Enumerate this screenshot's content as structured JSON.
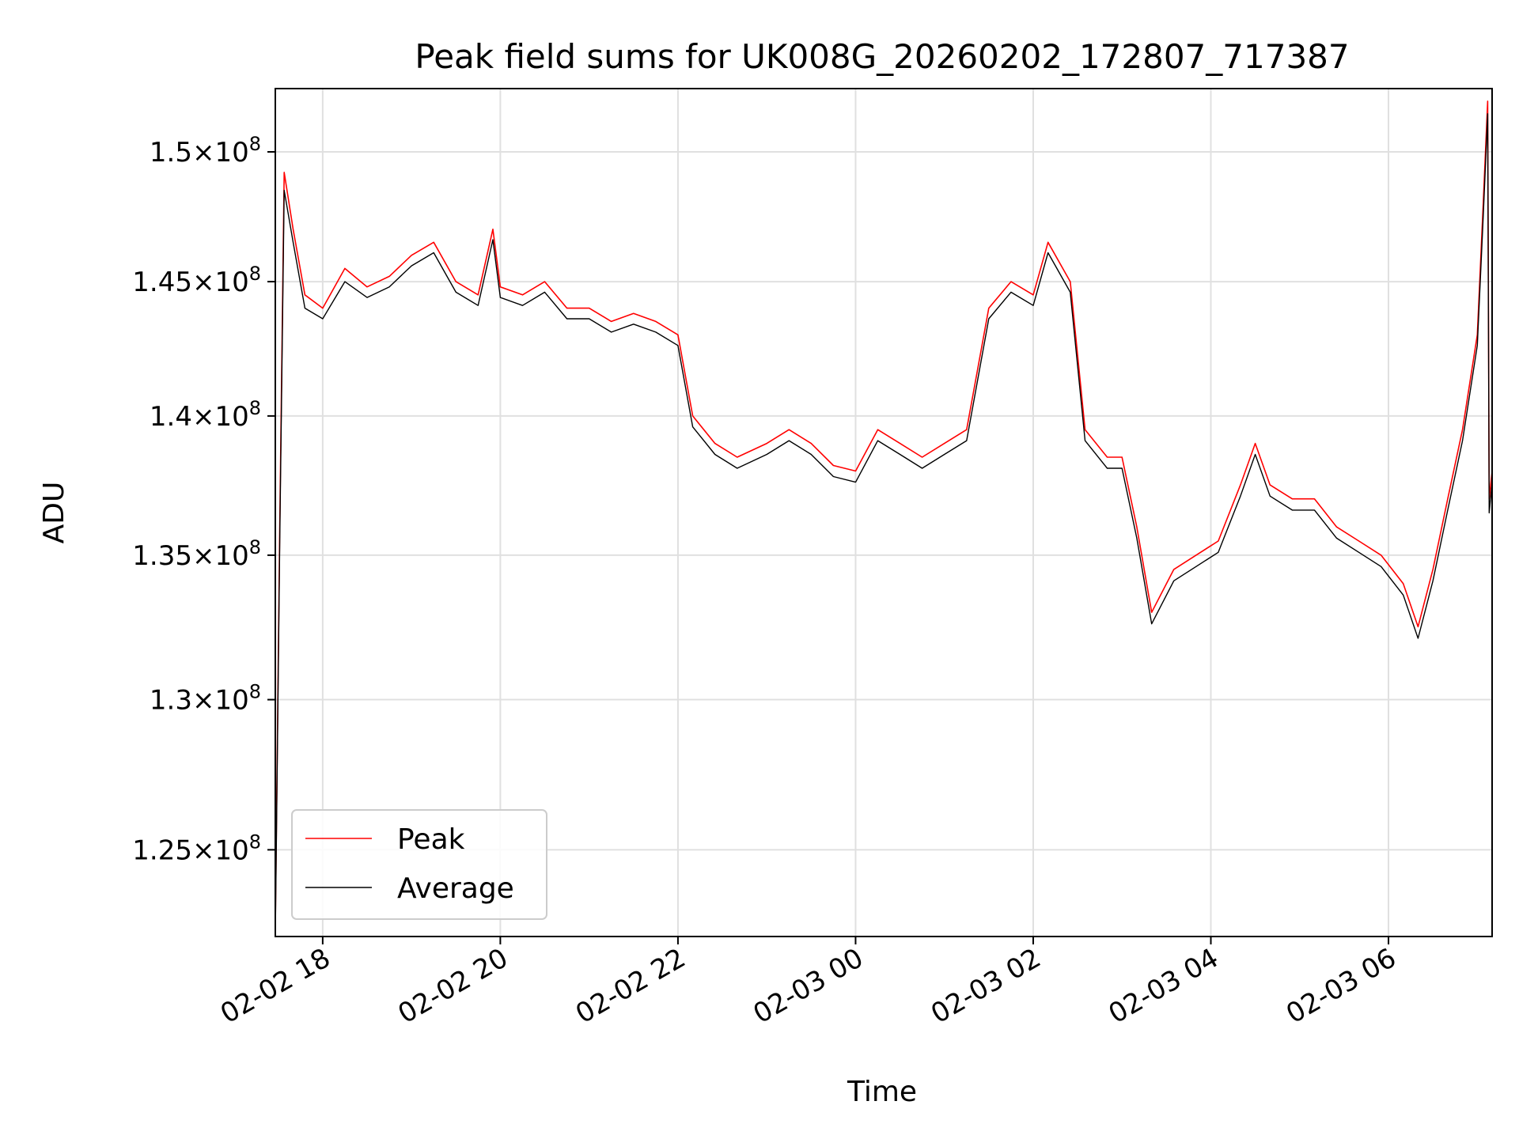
{
  "chart_data": {
    "type": "line",
    "title": "Peak field sums for UK008G_20260202_172807_717387",
    "xlabel": "Time",
    "ylabel": "ADU",
    "x_range": [
      "2026-02-02 17:28",
      "2026-02-03 07:10"
    ],
    "ylim": [
      122200000.0,
      152500000.0
    ],
    "y_scale": "log",
    "grid": true,
    "legend": {
      "position": "lower-left",
      "entries": [
        "Peak",
        "Average"
      ]
    },
    "x_ticks": [
      "02-02 18",
      "02-02 20",
      "02-02 22",
      "02-03 00",
      "02-03 02",
      "02-03 04",
      "02-03 06"
    ],
    "x_tick_values": [
      "2026-02-02 18:00",
      "2026-02-02 20:00",
      "2026-02-02 22:00",
      "2026-02-03 00:00",
      "2026-02-03 02:00",
      "2026-02-03 04:00",
      "2026-02-03 06:00"
    ],
    "y_ticks": [
      {
        "value": 125000000.0,
        "mantissa": "1.25",
        "exp": "8"
      },
      {
        "value": 130000000.0,
        "mantissa": "1.3",
        "exp": "8"
      },
      {
        "value": 135000000.0,
        "mantissa": "1.35",
        "exp": "8"
      },
      {
        "value": 140000000.0,
        "mantissa": "1.4",
        "exp": "8"
      },
      {
        "value": 145000000.0,
        "mantissa": "1.45",
        "exp": "8"
      },
      {
        "value": 150000000.0,
        "mantissa": "1.5",
        "exp": "8"
      }
    ],
    "series": [
      {
        "name": "Peak",
        "color": "#ff0000",
        "points": [
          [
            "2026-02-02 17:28",
            122500000.0
          ],
          [
            "2026-02-02 17:31",
            136000000.0
          ],
          [
            "2026-02-02 17:34",
            149200000.0
          ],
          [
            "2026-02-02 17:40",
            147000000.0
          ],
          [
            "2026-02-02 17:48",
            144500000.0
          ],
          [
            "2026-02-02 18:00",
            144000000.0
          ],
          [
            "2026-02-02 18:15",
            145500000.0
          ],
          [
            "2026-02-02 18:30",
            144800000.0
          ],
          [
            "2026-02-02 18:45",
            145200000.0
          ],
          [
            "2026-02-02 19:00",
            146000000.0
          ],
          [
            "2026-02-02 19:15",
            146500000.0
          ],
          [
            "2026-02-02 19:30",
            145000000.0
          ],
          [
            "2026-02-02 19:45",
            144500000.0
          ],
          [
            "2026-02-02 19:55",
            147000000.0
          ],
          [
            "2026-02-02 20:00",
            144800000.0
          ],
          [
            "2026-02-02 20:15",
            144500000.0
          ],
          [
            "2026-02-02 20:30",
            145000000.0
          ],
          [
            "2026-02-02 20:45",
            144000000.0
          ],
          [
            "2026-02-02 21:00",
            144000000.0
          ],
          [
            "2026-02-02 21:15",
            143500000.0
          ],
          [
            "2026-02-02 21:30",
            143800000.0
          ],
          [
            "2026-02-02 21:45",
            143500000.0
          ],
          [
            "2026-02-02 22:00",
            143000000.0
          ],
          [
            "2026-02-02 22:10",
            140000000.0
          ],
          [
            "2026-02-02 22:25",
            139000000.0
          ],
          [
            "2026-02-02 22:40",
            138500000.0
          ],
          [
            "2026-02-02 23:00",
            139000000.0
          ],
          [
            "2026-02-02 23:15",
            139500000.0
          ],
          [
            "2026-02-02 23:30",
            139000000.0
          ],
          [
            "2026-02-02 23:45",
            138200000.0
          ],
          [
            "2026-02-03 00:00",
            138000000.0
          ],
          [
            "2026-02-03 00:15",
            139500000.0
          ],
          [
            "2026-02-03 00:30",
            139000000.0
          ],
          [
            "2026-02-03 00:45",
            138500000.0
          ],
          [
            "2026-02-03 01:00",
            139000000.0
          ],
          [
            "2026-02-03 01:15",
            139500000.0
          ],
          [
            "2026-02-03 01:30",
            144000000.0
          ],
          [
            "2026-02-03 01:45",
            145000000.0
          ],
          [
            "2026-02-03 02:00",
            144500000.0
          ],
          [
            "2026-02-03 02:10",
            146500000.0
          ],
          [
            "2026-02-03 02:25",
            145000000.0
          ],
          [
            "2026-02-03 02:35",
            139500000.0
          ],
          [
            "2026-02-03 02:50",
            138500000.0
          ],
          [
            "2026-02-03 03:00",
            138500000.0
          ],
          [
            "2026-02-03 03:10",
            136000000.0
          ],
          [
            "2026-02-03 03:20",
            133000000.0
          ],
          [
            "2026-02-03 03:35",
            134500000.0
          ],
          [
            "2026-02-03 03:50",
            135000000.0
          ],
          [
            "2026-02-03 04:05",
            135500000.0
          ],
          [
            "2026-02-03 04:20",
            137500000.0
          ],
          [
            "2026-02-03 04:30",
            139000000.0
          ],
          [
            "2026-02-03 04:40",
            137500000.0
          ],
          [
            "2026-02-03 04:55",
            137000000.0
          ],
          [
            "2026-02-03 05:10",
            137000000.0
          ],
          [
            "2026-02-03 05:25",
            136000000.0
          ],
          [
            "2026-02-03 05:40",
            135500000.0
          ],
          [
            "2026-02-03 05:55",
            135000000.0
          ],
          [
            "2026-02-03 06:10",
            134000000.0
          ],
          [
            "2026-02-03 06:20",
            132500000.0
          ],
          [
            "2026-02-03 06:30",
            134500000.0
          ],
          [
            "2026-02-03 06:40",
            137000000.0
          ],
          [
            "2026-02-03 06:50",
            139500000.0
          ],
          [
            "2026-02-03 07:00",
            143000000.0
          ],
          [
            "2026-02-03 07:04",
            148000000.0
          ],
          [
            "2026-02-03 07:07",
            152000000.0
          ],
          [
            "2026-02-03 07:08",
            137000000.0
          ],
          [
            "2026-02-03 07:10",
            138000000.0
          ]
        ]
      },
      {
        "name": "Average",
        "color": "#000000",
        "points": [
          [
            "2026-02-02 17:28",
            122200000.0
          ],
          [
            "2026-02-02 17:31",
            135500000.0
          ],
          [
            "2026-02-02 17:34",
            148500000.0
          ],
          [
            "2026-02-02 17:40",
            146500000.0
          ],
          [
            "2026-02-02 17:48",
            144000000.0
          ],
          [
            "2026-02-02 18:00",
            143600000.0
          ],
          [
            "2026-02-02 18:15",
            145000000.0
          ],
          [
            "2026-02-02 18:30",
            144400000.0
          ],
          [
            "2026-02-02 18:45",
            144800000.0
          ],
          [
            "2026-02-02 19:00",
            145600000.0
          ],
          [
            "2026-02-02 19:15",
            146100000.0
          ],
          [
            "2026-02-02 19:30",
            144600000.0
          ],
          [
            "2026-02-02 19:45",
            144100000.0
          ],
          [
            "2026-02-02 19:55",
            146600000.0
          ],
          [
            "2026-02-02 20:00",
            144400000.0
          ],
          [
            "2026-02-02 20:15",
            144100000.0
          ],
          [
            "2026-02-02 20:30",
            144600000.0
          ],
          [
            "2026-02-02 20:45",
            143600000.0
          ],
          [
            "2026-02-02 21:00",
            143600000.0
          ],
          [
            "2026-02-02 21:15",
            143100000.0
          ],
          [
            "2026-02-02 21:30",
            143400000.0
          ],
          [
            "2026-02-02 21:45",
            143100000.0
          ],
          [
            "2026-02-02 22:00",
            142600000.0
          ],
          [
            "2026-02-02 22:10",
            139600000.0
          ],
          [
            "2026-02-02 22:25",
            138600000.0
          ],
          [
            "2026-02-02 22:40",
            138100000.0
          ],
          [
            "2026-02-02 23:00",
            138600000.0
          ],
          [
            "2026-02-02 23:15",
            139100000.0
          ],
          [
            "2026-02-02 23:30",
            138600000.0
          ],
          [
            "2026-02-02 23:45",
            137800000.0
          ],
          [
            "2026-02-03 00:00",
            137600000.0
          ],
          [
            "2026-02-03 00:15",
            139100000.0
          ],
          [
            "2026-02-03 00:30",
            138600000.0
          ],
          [
            "2026-02-03 00:45",
            138100000.0
          ],
          [
            "2026-02-03 01:00",
            138600000.0
          ],
          [
            "2026-02-03 01:15",
            139100000.0
          ],
          [
            "2026-02-03 01:30",
            143600000.0
          ],
          [
            "2026-02-03 01:45",
            144600000.0
          ],
          [
            "2026-02-03 02:00",
            144100000.0
          ],
          [
            "2026-02-03 02:10",
            146100000.0
          ],
          [
            "2026-02-03 02:25",
            144600000.0
          ],
          [
            "2026-02-03 02:35",
            139100000.0
          ],
          [
            "2026-02-03 02:50",
            138100000.0
          ],
          [
            "2026-02-03 03:00",
            138100000.0
          ],
          [
            "2026-02-03 03:10",
            135600000.0
          ],
          [
            "2026-02-03 03:20",
            132600000.0
          ],
          [
            "2026-02-03 03:35",
            134100000.0
          ],
          [
            "2026-02-03 03:50",
            134600000.0
          ],
          [
            "2026-02-03 04:05",
            135100000.0
          ],
          [
            "2026-02-03 04:20",
            137100000.0
          ],
          [
            "2026-02-03 04:30",
            138600000.0
          ],
          [
            "2026-02-03 04:40",
            137100000.0
          ],
          [
            "2026-02-03 04:55",
            136600000.0
          ],
          [
            "2026-02-03 05:10",
            136600000.0
          ],
          [
            "2026-02-03 05:25",
            135600000.0
          ],
          [
            "2026-02-03 05:40",
            135100000.0
          ],
          [
            "2026-02-03 05:55",
            134600000.0
          ],
          [
            "2026-02-03 06:10",
            133600000.0
          ],
          [
            "2026-02-03 06:20",
            132100000.0
          ],
          [
            "2026-02-03 06:30",
            134100000.0
          ],
          [
            "2026-02-03 06:40",
            136600000.0
          ],
          [
            "2026-02-03 06:50",
            139100000.0
          ],
          [
            "2026-02-03 07:00",
            142600000.0
          ],
          [
            "2026-02-03 07:04",
            147500000.0
          ],
          [
            "2026-02-03 07:07",
            151500000.0
          ],
          [
            "2026-02-03 07:08",
            136500000.0
          ],
          [
            "2026-02-03 07:10",
            137600000.0
          ]
        ]
      }
    ]
  }
}
